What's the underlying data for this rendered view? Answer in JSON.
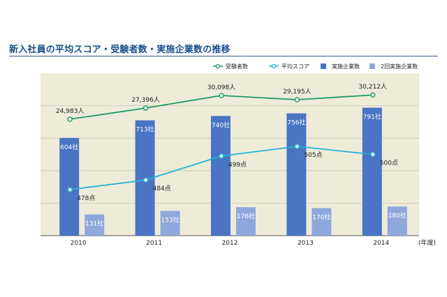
{
  "title": "新入社員の平均スコア・受験者数・実施企業数の推移",
  "unit_label": "(年度)",
  "colors": {
    "examinees": "#1f9a6b",
    "score": "#22b2d6",
    "companies": "#4a74c4",
    "repeat": "#8fa8dc",
    "plot_bg": "#eeecd9",
    "title": "#1a4f8b"
  },
  "chart_data": {
    "type": "bar",
    "categories": [
      "2010",
      "2011",
      "2012",
      "2013",
      "2014"
    ],
    "series": [
      {
        "name": "受験者数",
        "kind": "line",
        "values": [
          24983,
          27396,
          30098,
          29195,
          30212
        ],
        "labels": [
          "24,983人",
          "27,396人",
          "30,098人",
          "29,195人",
          "30,212人"
        ]
      },
      {
        "name": "平均スコア",
        "kind": "line",
        "values": [
          478,
          484,
          499,
          505,
          500
        ],
        "labels": [
          "478点",
          "484点",
          "499点",
          "505点",
          "500点"
        ]
      },
      {
        "name": "実施企業数",
        "kind": "bar",
        "values": [
          604,
          713,
          740,
          756,
          791
        ],
        "labels": [
          "604社",
          "713社",
          "740社",
          "756社",
          "791社"
        ]
      },
      {
        "name": "2回実施企業数",
        "kind": "bar",
        "values": [
          131,
          153,
          176,
          170,
          180
        ],
        "labels": [
          "131社",
          "153社",
          "176社",
          "170社",
          "180社"
        ]
      }
    ],
    "legend_position": "top-right",
    "grid": true
  }
}
